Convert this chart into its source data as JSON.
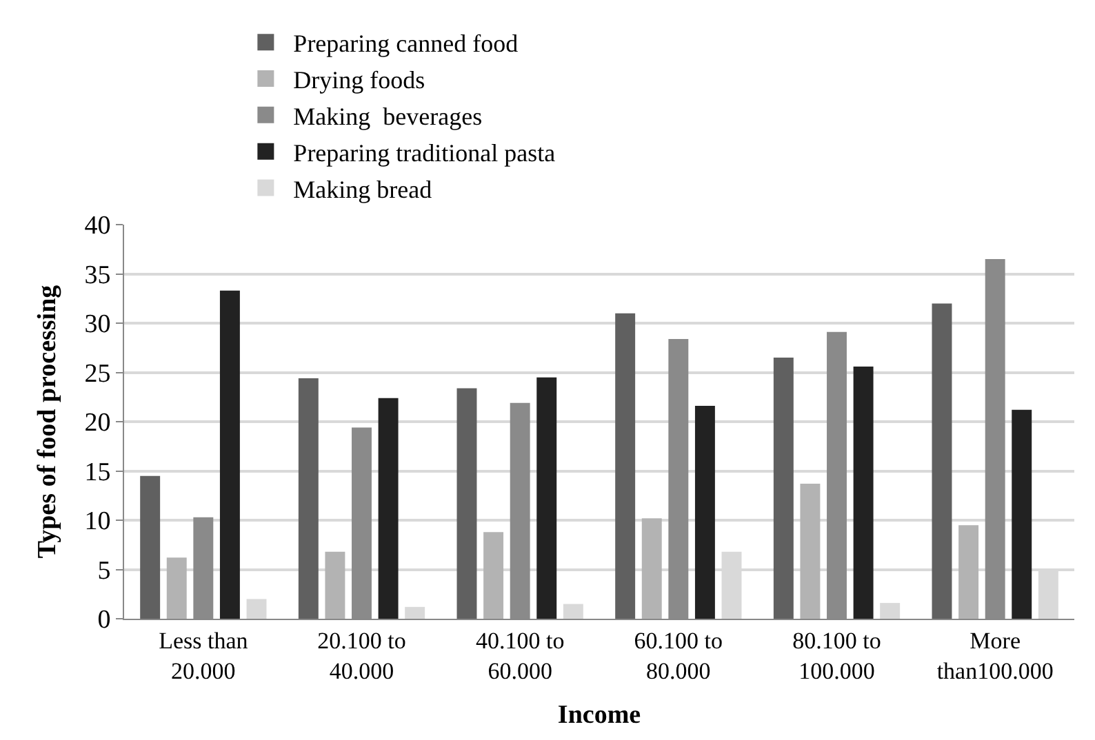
{
  "chart_data": {
    "type": "bar",
    "xlabel": "Income",
    "ylabel": "Types of food processing",
    "categories": [
      "Less than\n20.000",
      "20.100 to\n40.000",
      "40.100 to\n60.000",
      "60.100 to\n80.000",
      "80.100 to\n100.000",
      "More\nthan100.000"
    ],
    "series": [
      {
        "name": "Preparing canned food",
        "color": "#606060",
        "values": [
          14.5,
          24.4,
          23.4,
          31.0,
          26.5,
          32.0
        ]
      },
      {
        "name": "Drying foods",
        "color": "#b3b3b3",
        "values": [
          6.2,
          6.8,
          8.8,
          10.2,
          13.7,
          9.5
        ]
      },
      {
        "name": "Making  beverages",
        "color": "#8a8a8a",
        "values": [
          10.3,
          19.4,
          21.9,
          28.4,
          29.1,
          36.5
        ]
      },
      {
        "name": "Preparing traditional pasta",
        "color": "#222222",
        "values": [
          33.3,
          22.4,
          24.5,
          21.6,
          25.6,
          21.2
        ]
      },
      {
        "name": "Making bread",
        "color": "#d9d9d9",
        "values": [
          2.0,
          1.2,
          1.5,
          6.8,
          1.6,
          5.0
        ]
      }
    ],
    "ylim": [
      0,
      40
    ],
    "yticks": [
      0,
      5,
      10,
      15,
      20,
      25,
      30,
      35,
      40
    ],
    "grid": "y",
    "legend": "top"
  }
}
